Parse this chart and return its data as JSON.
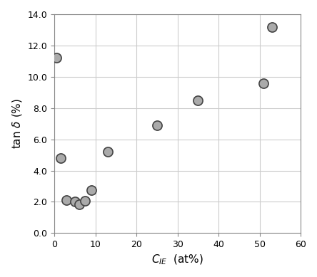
{
  "points": [
    [
      0.5,
      11.2
    ],
    [
      1.5,
      4.8
    ],
    [
      3,
      2.1
    ],
    [
      5,
      2.0
    ],
    [
      6,
      1.85
    ],
    [
      7.5,
      2.05
    ],
    [
      9,
      2.75
    ],
    [
      13,
      5.2
    ],
    [
      25,
      6.9
    ],
    [
      35,
      8.5
    ],
    [
      51,
      9.6
    ],
    [
      53,
      13.2
    ]
  ],
  "marker_color": "#aaaaaa",
  "marker_edge_color": "#444444",
  "marker_size": 90,
  "marker_edge_width": 1.2,
  "xlim": [
    0,
    60
  ],
  "ylim": [
    0.0,
    14.0
  ],
  "xticks": [
    0,
    10,
    20,
    30,
    40,
    50,
    60
  ],
  "yticks": [
    0.0,
    2.0,
    4.0,
    6.0,
    8.0,
    10.0,
    12.0,
    14.0
  ],
  "xlabel": "C_IE  (at%)",
  "ylabel": "tan δ (%)",
  "grid_color": "#cccccc",
  "background_color": "#ffffff",
  "fig_background": "#ffffff",
  "tick_fontsize": 9,
  "label_fontsize": 11
}
